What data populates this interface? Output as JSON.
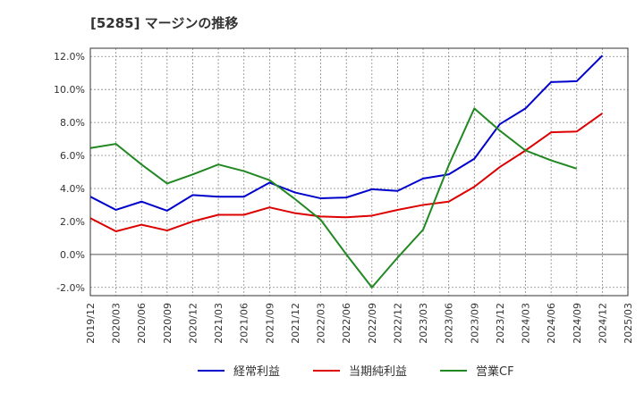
{
  "chart_data": {
    "type": "line",
    "title": "[5285]  マージンの推移",
    "xlabel": "",
    "ylabel": "",
    "ylim": [
      -2.5,
      12.5
    ],
    "y_ticks": [
      -2.0,
      0.0,
      2.0,
      4.0,
      6.0,
      8.0,
      10.0,
      12.0
    ],
    "y_tick_labels": [
      "-2.0%",
      "0.0%",
      "2.0%",
      "4.0%",
      "6.0%",
      "8.0%",
      "10.0%",
      "12.0%"
    ],
    "categories": [
      "2019/12",
      "2020/03",
      "2020/06",
      "2020/09",
      "2020/12",
      "2021/03",
      "2021/06",
      "2021/09",
      "2021/12",
      "2022/03",
      "2022/06",
      "2022/09",
      "2022/12",
      "2023/03",
      "2023/06",
      "2023/09",
      "2023/12",
      "2024/03",
      "2024/06",
      "2024/09",
      "2024/12",
      "2025/03"
    ],
    "grid": true,
    "legend_position": "bottom",
    "series": [
      {
        "name": "経常利益",
        "color": "#0000cc",
        "values": [
          3.5,
          2.7,
          3.2,
          2.65,
          3.6,
          3.5,
          3.5,
          4.35,
          3.75,
          3.4,
          3.45,
          3.95,
          3.85,
          4.6,
          4.85,
          5.8,
          7.9,
          8.85,
          10.45,
          10.5,
          12.05,
          null
        ]
      },
      {
        "name": "当期純利益",
        "color": "#dd0000",
        "values": [
          2.2,
          1.4,
          1.8,
          1.45,
          2.0,
          2.4,
          2.4,
          2.85,
          2.5,
          2.3,
          2.25,
          2.35,
          2.7,
          3.0,
          3.2,
          4.1,
          5.3,
          6.3,
          7.4,
          7.45,
          8.55,
          null
        ]
      },
      {
        "name": "営業CF",
        "color": "#228822",
        "values": [
          6.45,
          6.7,
          5.45,
          4.3,
          4.85,
          5.45,
          5.05,
          4.5,
          3.35,
          2.1,
          0.0,
          -2.0,
          -0.2,
          1.5,
          5.4,
          8.85,
          7.5,
          6.3,
          5.7,
          5.2,
          null,
          null
        ]
      }
    ]
  }
}
